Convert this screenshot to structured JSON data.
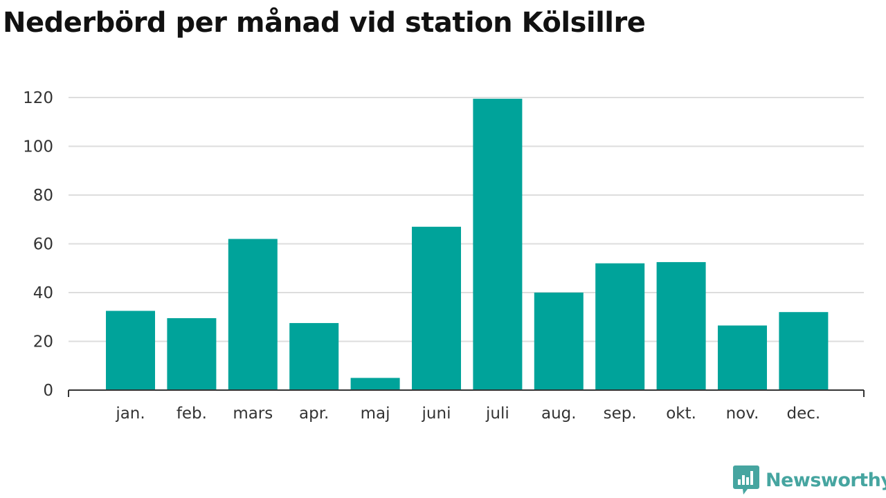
{
  "title": "Nederbörd per månad vid station Kölsillre",
  "logo": {
    "text": "Newsworthy",
    "color": "#46a5a0"
  },
  "colors": {
    "bar": "#00a39a",
    "grid": "#dddddd",
    "axis": "#333333",
    "text": "#333333"
  },
  "chart_data": {
    "type": "bar",
    "categories": [
      "jan.",
      "feb.",
      "mars",
      "apr.",
      "maj",
      "juni",
      "juli",
      "aug.",
      "sep.",
      "okt.",
      "nov.",
      "dec."
    ],
    "values": [
      32.5,
      29.5,
      62,
      27.5,
      5,
      67,
      119.5,
      40,
      52,
      52.5,
      26.5,
      32
    ],
    "title": "Nederbörd per månad vid station Kölsillre",
    "xlabel": "",
    "ylabel": "",
    "ylim": [
      0,
      120
    ],
    "yticks": [
      0,
      20,
      40,
      60,
      80,
      100,
      120
    ],
    "grid": true,
    "legend": "none"
  }
}
